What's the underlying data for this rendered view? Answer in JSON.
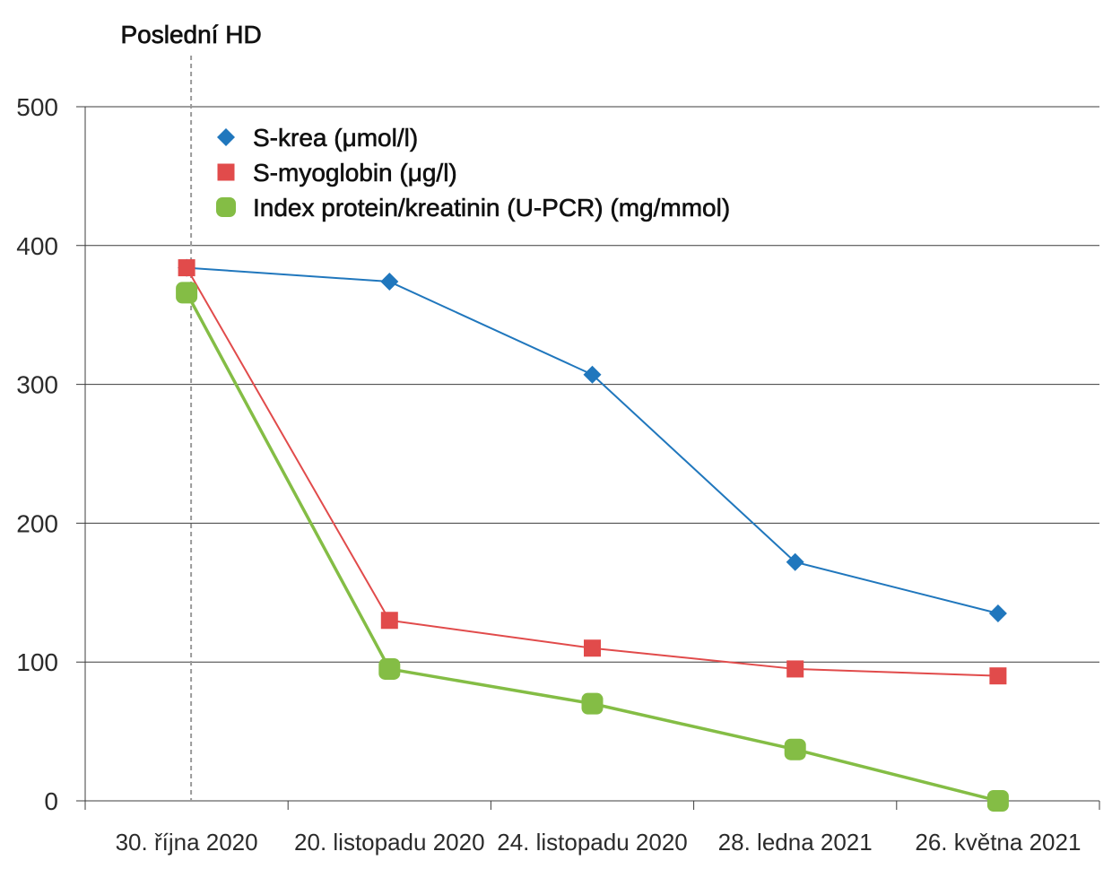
{
  "chart_data": {
    "type": "line",
    "categories": [
      "30. října 2020",
      "20. listopadu 2020",
      "24. listopadu 2020",
      "28. ledna 2021",
      "26. května 2021"
    ],
    "ylim": [
      0,
      500
    ],
    "yticks": [
      0,
      100,
      200,
      300,
      400,
      500
    ],
    "grid": true,
    "legend": "top-left",
    "series": [
      {
        "name": "S-krea (μmol/l)",
        "values": [
          384,
          374,
          307,
          172,
          135
        ],
        "color": "#2077bd",
        "marker": "diamond"
      },
      {
        "name": "S-myoglobin (μg/l)",
        "values": [
          384,
          130,
          110,
          95,
          90
        ],
        "color": "#e14b4b",
        "marker": "square"
      },
      {
        "name": "Index protein/kreatinin (U-PCR) (mg/mmol)",
        "values": [
          366,
          95,
          70,
          37,
          0
        ],
        "color": "#84bd45",
        "marker": "rounded-square"
      }
    ],
    "annotations": [
      {
        "text": "Poslední HD",
        "x": "30. října 2020",
        "style": "dashed-vertical-line"
      }
    ]
  }
}
